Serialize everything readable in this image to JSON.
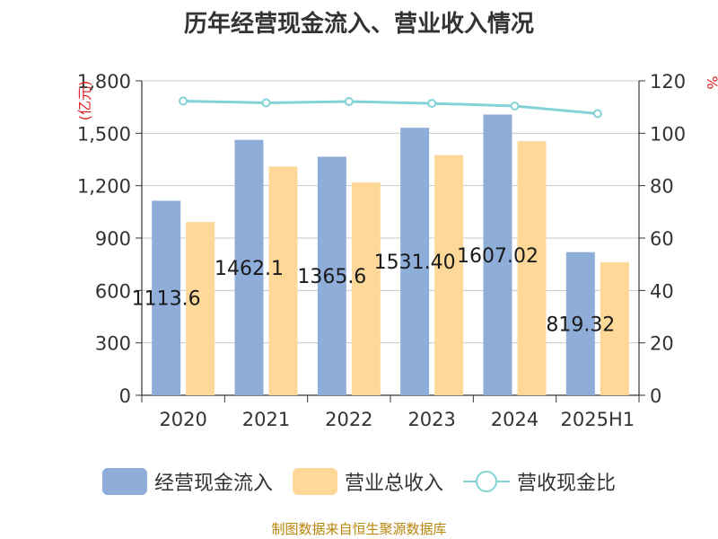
{
  "title": "历年经营现金流入、营业收入情况",
  "footer": "制图数据来自恒生聚源数据库",
  "colors": {
    "cash": "#8eadd9",
    "revenue": "#fdd899",
    "ratio": "#83d3d6",
    "unit": "#e02020"
  },
  "chart_data": {
    "type": "bar",
    "categories": [
      "2020",
      "2021",
      "2022",
      "2023",
      "2024",
      "2025H1"
    ],
    "series": [
      {
        "name": "经营现金流入",
        "type": "bar",
        "axis": "left",
        "values": [
          1113.6,
          1462.1,
          1365.6,
          1531.4,
          1607.0,
          819.32
        ],
        "labels": [
          "1113.6",
          "1462.1",
          "1365.6",
          "1531.40",
          "1607.02",
          "819.32"
        ]
      },
      {
        "name": "营业总收入",
        "type": "bar",
        "axis": "left",
        "values": [
          992,
          1310,
          1218,
          1375,
          1455,
          762
        ]
      },
      {
        "name": "营收现金比",
        "type": "line",
        "axis": "right",
        "values": [
          112.3,
          111.6,
          112.1,
          111.4,
          110.4,
          107.5
        ]
      }
    ],
    "y_left": {
      "label": "(亿元)",
      "ylim": [
        0,
        1800
      ],
      "ticks": [
        "0",
        "300",
        "600",
        "900",
        "1,200",
        "1,500",
        "1,800"
      ]
    },
    "y_right": {
      "label": "%",
      "ylim": [
        0,
        120
      ],
      "ticks": [
        "0",
        "20",
        "40",
        "60",
        "80",
        "100",
        "120"
      ]
    },
    "grid": true,
    "legend_position": "bottom"
  }
}
